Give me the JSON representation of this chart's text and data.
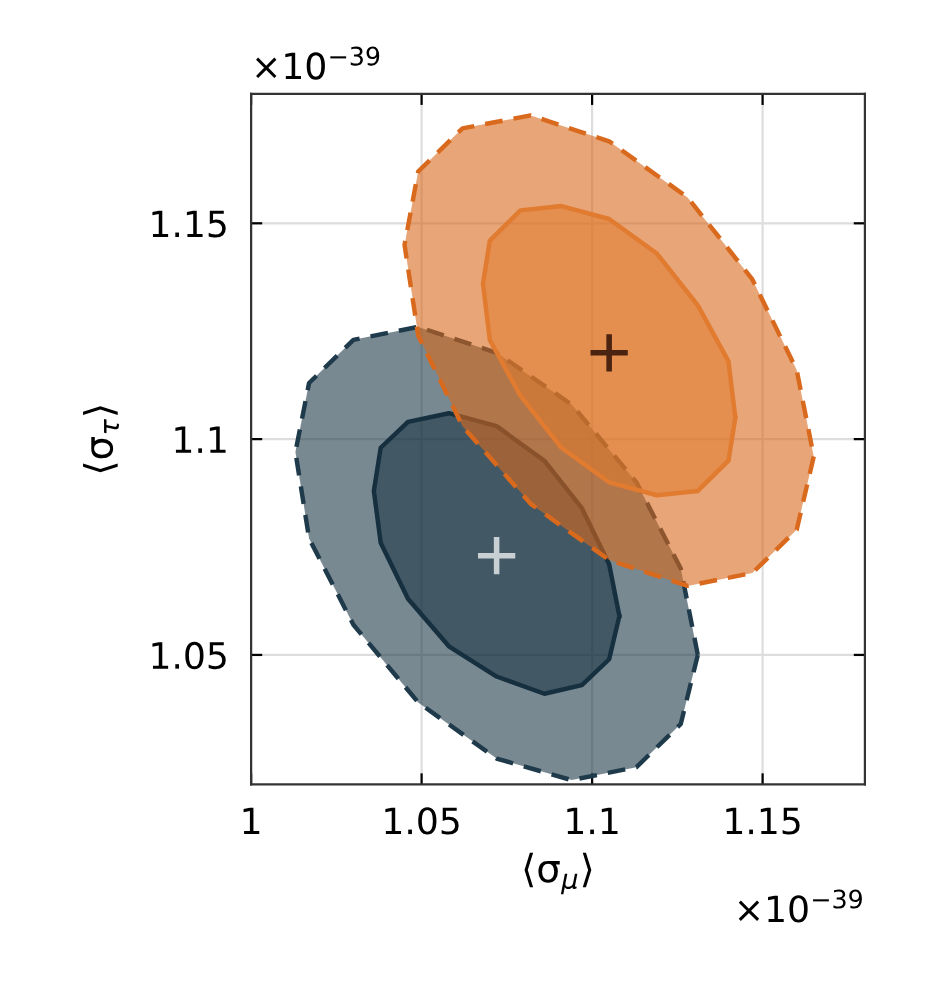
{
  "chart_data": {
    "type": "area",
    "xlabel": "⟨σ$_{μ}$⟩",
    "ylabel": "⟨σ$_{τ}$⟩",
    "annotations": [
      "×10$^{−39}$",
      "×10$^{−39}$"
    ],
    "xlim": [
      1,
      1.18
    ],
    "xticks": [
      1,
      1.05,
      1.1,
      1.15
    ],
    "ylim": [
      1.02,
      1.18
    ],
    "yticks": [
      1.05,
      1.1,
      1.15
    ],
    "grid": true,
    "series": [
      {
        "line_style": "dashed",
        "color": "#1f3a4a",
        "x": [
          1.131,
          1.126,
          1.113,
          1.094,
          1.072,
          1.049,
          1.03,
          1.017,
          1.013,
          1.017,
          1.03,
          1.049,
          1.072,
          1.094,
          1.113,
          1.126
        ],
        "values": [
          1.05,
          1.034,
          1.024,
          1.021,
          1.026,
          1.039,
          1.057,
          1.077,
          1.097,
          1.113,
          1.123,
          1.126,
          1.12,
          1.108,
          1.09,
          1.07
        ]
      },
      {
        "line_style": "solid",
        "color": "#163040",
        "x": [
          1.108,
          1.105,
          1.097,
          1.086,
          1.072,
          1.058,
          1.046,
          1.038,
          1.036,
          1.038,
          1.046,
          1.058,
          1.072,
          1.086,
          1.097,
          1.105
        ],
        "values": [
          1.059,
          1.049,
          1.043,
          1.041,
          1.045,
          1.052,
          1.063,
          1.076,
          1.088,
          1.098,
          1.104,
          1.106,
          1.103,
          1.095,
          1.084,
          1.071
        ]
      },
      {
        "type": "scatter",
        "marker": "cross",
        "color": "#c8d0d4",
        "x": [
          1.072
        ],
        "values": [
          1.073
        ]
      },
      {
        "line_style": "dashed",
        "color": "#d9691c",
        "x": [
          1.165,
          1.16,
          1.147,
          1.128,
          1.105,
          1.082,
          1.062,
          1.049,
          1.045,
          1.049,
          1.062,
          1.082,
          1.105,
          1.128,
          1.147,
          1.16
        ],
        "values": [
          1.096,
          1.079,
          1.069,
          1.066,
          1.072,
          1.085,
          1.103,
          1.124,
          1.145,
          1.162,
          1.172,
          1.175,
          1.169,
          1.156,
          1.137,
          1.116
        ]
      },
      {
        "line_style": "solid",
        "color": "#e07b30",
        "x": [
          1.142,
          1.14,
          1.131,
          1.119,
          1.105,
          1.091,
          1.079,
          1.07,
          1.068,
          1.07,
          1.079,
          1.091,
          1.105,
          1.119,
          1.131,
          1.14
        ],
        "values": [
          1.105,
          1.095,
          1.088,
          1.087,
          1.09,
          1.098,
          1.11,
          1.123,
          1.136,
          1.146,
          1.153,
          1.154,
          1.151,
          1.143,
          1.131,
          1.118
        ]
      },
      {
        "type": "scatter",
        "marker": "cross",
        "color": "#4a2410",
        "x": [
          1.105
        ],
        "values": [
          1.12
        ]
      }
    ]
  }
}
